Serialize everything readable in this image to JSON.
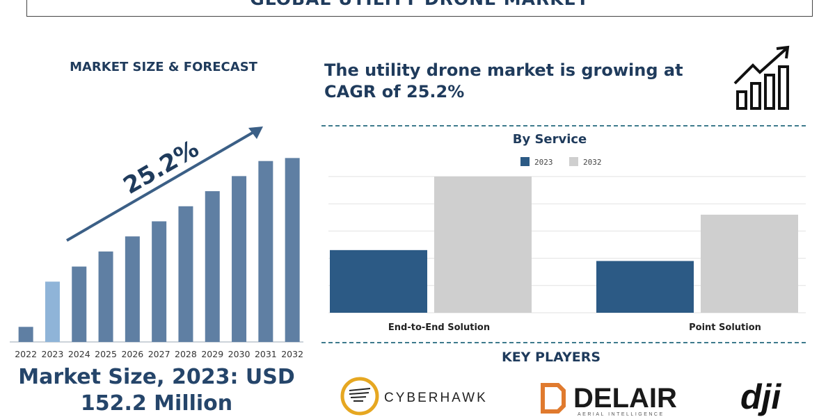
{
  "header": {
    "title": "GLOBAL UTILITY DRONE MARKET"
  },
  "left": {
    "heading": "MARKET SIZE & FORECAST",
    "cagr_label": "25.2%",
    "market_size_line1": "Market Size, 2023: USD",
    "market_size_line2": "152.2 Million"
  },
  "right": {
    "headline_line1": "The utility drone market is growing at",
    "headline_line2": "CAGR of 25.2%",
    "key_players_title": "KEY PLAYERS",
    "key_players": [
      "CYBERHAWK",
      "DELAIR",
      "dji"
    ],
    "delair_tagline": "AERIAL INTELLIGENCE"
  },
  "colors": {
    "dark_blue": "#1f3b5c",
    "bar_blue": "#5f7fa3",
    "bar_light": "#8fb4d8",
    "series_2023": "#2c5a85",
    "series_2032": "#cfcfcf",
    "accent_orange": "#e07a2e"
  },
  "chart_data": [
    {
      "type": "bar",
      "categories": [
        "2022",
        "2023",
        "2024",
        "2025",
        "2026",
        "2027",
        "2028",
        "2029",
        "2030",
        "2031",
        "2032"
      ],
      "values": [
        10,
        40,
        50,
        60,
        70,
        80,
        90,
        100,
        110,
        120,
        122
      ],
      "highlight_category": "2023",
      "annotation": "25.2%",
      "grid": false,
      "ylim": [
        0,
        130
      ]
    },
    {
      "type": "bar",
      "title": "By Service",
      "categories": [
        "End-to-End Solution",
        "Point Solution"
      ],
      "series": [
        {
          "name": "2023",
          "values": [
            46,
            38
          ]
        },
        {
          "name": "2032",
          "values": [
            100,
            72
          ]
        }
      ],
      "legend_position": "top-center",
      "ylim": [
        0,
        100
      ],
      "grid": true
    }
  ]
}
